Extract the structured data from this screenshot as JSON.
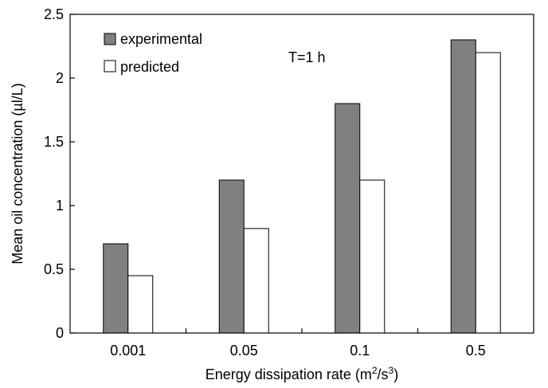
{
  "chart_data": {
    "type": "bar",
    "title": "",
    "annotation": "T=1 h",
    "categories": [
      "0.001",
      "0.05",
      "0.1",
      "0.5"
    ],
    "series": [
      {
        "name": "experimental",
        "values": [
          0.7,
          1.2,
          1.8,
          2.3
        ],
        "color": "#808080"
      },
      {
        "name": "predicted",
        "values": [
          0.45,
          0.82,
          1.2,
          2.2
        ],
        "color": "#ffffff"
      }
    ],
    "xlabel": {
      "prefix": "Energy dissipation rate (m",
      "sup1": "2",
      "mid": "/s",
      "sup2": "3",
      "suffix": ")"
    },
    "ylabel": "Mean oil concentration (µl/L)",
    "ylim": [
      0,
      2.5
    ],
    "yticks": [
      "0",
      "0.5",
      "1",
      "1.5",
      "2",
      "2.5"
    ],
    "legend_position": "top-left",
    "grid": false
  }
}
